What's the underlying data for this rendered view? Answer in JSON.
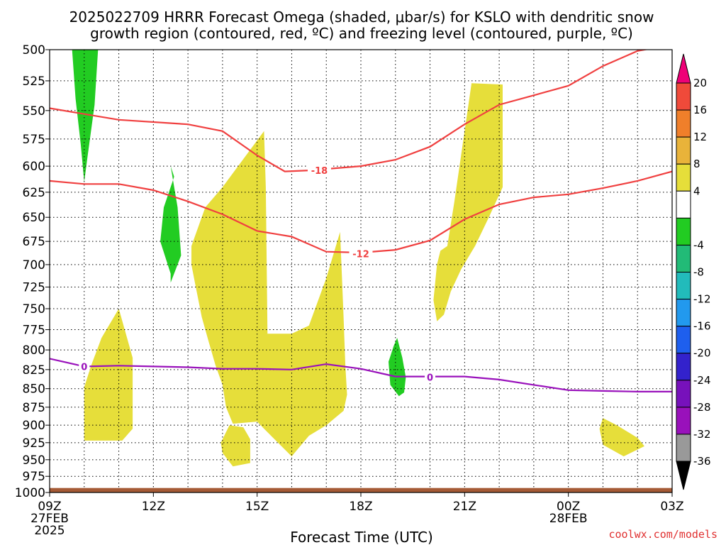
{
  "chart_data": {
    "type": "contour",
    "title_line1": "2025022709 HRRR Forecast Omega (shaded, μbar/s) for KSLO with dendritic snow",
    "title_line2": "growth region (contoured, red, ºC) and freezing level (contoured, purple, ºC)",
    "xlabel": "Forecast Time (UTC)",
    "credit": "coolwx.com/models",
    "x_ticks": [
      {
        "h": 0,
        "label": "09Z",
        "sub1": "27FEB",
        "sub2": "2025"
      },
      {
        "h": 3,
        "label": "12Z",
        "sub1": "",
        "sub2": ""
      },
      {
        "h": 6,
        "label": "15Z",
        "sub1": "",
        "sub2": ""
      },
      {
        "h": 9,
        "label": "18Z",
        "sub1": "",
        "sub2": ""
      },
      {
        "h": 12,
        "label": "21Z",
        "sub1": "",
        "sub2": ""
      },
      {
        "h": 15,
        "label": "00Z",
        "sub1": "28FEB",
        "sub2": ""
      },
      {
        "h": 18,
        "label": "03Z",
        "sub1": "",
        "sub2": ""
      }
    ],
    "y_ticks": [
      "500",
      "525",
      "550",
      "575",
      "600",
      "625",
      "650",
      "675",
      "700",
      "725",
      "750",
      "775",
      "800",
      "825",
      "850",
      "875",
      "900",
      "925",
      "950",
      "975",
      "1000"
    ],
    "xlim_hours": [
      0,
      18
    ],
    "ylim_hpa": [
      500,
      1000
    ],
    "y_scale": "log-pressure",
    "grid": true,
    "colorbar": {
      "labels": [
        "20",
        "16",
        "12",
        "8",
        "4",
        "-4",
        "-8",
        "-12",
        "-16",
        "-20",
        "-24",
        "-28",
        "-32",
        "-36"
      ],
      "colors": [
        "#ee0077",
        "#f04a3a",
        "#f07f2a",
        "#e9b33a",
        "#e6de3a",
        "#ffffff",
        "#22cc22",
        "#22bb77",
        "#22bbbb",
        "#2299ee",
        "#1e5fee",
        "#3322cc",
        "#7711bb",
        "#9911bb",
        "#999999",
        "#000000"
      ]
    },
    "series": [
      {
        "name": "-18",
        "color": "#f04040",
        "label_at": {
          "h": 7.8,
          "p": 604
        },
        "points": [
          [
            0,
            548
          ],
          [
            1,
            553
          ],
          [
            2,
            558
          ],
          [
            4,
            562
          ],
          [
            5,
            568
          ],
          [
            6,
            590
          ],
          [
            6.8,
            605
          ],
          [
            7.5,
            604
          ],
          [
            9,
            600
          ],
          [
            10,
            594
          ],
          [
            11,
            582
          ],
          [
            12,
            562
          ],
          [
            13,
            545
          ],
          [
            14,
            537
          ],
          [
            15,
            529
          ],
          [
            16,
            513
          ],
          [
            17,
            501
          ],
          [
            18,
            496
          ]
        ]
      },
      {
        "name": "-12",
        "color": "#f04040",
        "label_at": {
          "h": 9,
          "p": 688
        },
        "points": [
          [
            0,
            614
          ],
          [
            1,
            617
          ],
          [
            2,
            617
          ],
          [
            3,
            623
          ],
          [
            4,
            634
          ],
          [
            5,
            647
          ],
          [
            6,
            664
          ],
          [
            7,
            670
          ],
          [
            8,
            686
          ],
          [
            9,
            687
          ],
          [
            10,
            684
          ],
          [
            11,
            674
          ],
          [
            12,
            652
          ],
          [
            13,
            637
          ],
          [
            14,
            630
          ],
          [
            15,
            627
          ],
          [
            16,
            621
          ],
          [
            17,
            614
          ],
          [
            18,
            605
          ]
        ]
      },
      {
        "name": "0",
        "color": "#9911bb",
        "label_at": [
          {
            "h": 1,
            "p": 821
          },
          {
            "h": 11,
            "p": 835
          }
        ],
        "points": [
          [
            0,
            811
          ],
          [
            1,
            821
          ],
          [
            2,
            820
          ],
          [
            3,
            821
          ],
          [
            4,
            822
          ],
          [
            5,
            824
          ],
          [
            6,
            824
          ],
          [
            7,
            825
          ],
          [
            8,
            818
          ],
          [
            9,
            824
          ],
          [
            10,
            834
          ],
          [
            11,
            834
          ],
          [
            12,
            834
          ],
          [
            13,
            838
          ],
          [
            14,
            845
          ],
          [
            15,
            852
          ],
          [
            16,
            853
          ],
          [
            17,
            854
          ],
          [
            18,
            854
          ]
        ]
      }
    ],
    "shaded_regions": [
      {
        "class": "-8",
        "color": "#22cc22",
        "points": [
          [
            0.65,
            500
          ],
          [
            1.4,
            500
          ],
          [
            1.3,
            545
          ],
          [
            1.1,
            590
          ],
          [
            1.0,
            615
          ],
          [
            0.9,
            580
          ],
          [
            0.75,
            540
          ]
        ]
      },
      {
        "class": "-8",
        "color": "#22cc22",
        "points": [
          [
            3.5,
            600
          ],
          [
            3.6,
            610
          ],
          [
            3.3,
            640
          ],
          [
            3.2,
            675
          ],
          [
            3.5,
            710
          ],
          [
            3.5,
            720
          ],
          [
            3.8,
            690
          ],
          [
            3.7,
            640
          ]
        ]
      },
      {
        "class": "-8",
        "color": "#22cc22",
        "points": [
          [
            10.05,
            785
          ],
          [
            10.2,
            810
          ],
          [
            10.3,
            835
          ],
          [
            10.25,
            855
          ],
          [
            10.1,
            860
          ],
          [
            9.85,
            845
          ],
          [
            9.8,
            815
          ],
          [
            9.95,
            795
          ]
        ]
      },
      {
        "class": "4",
        "color": "#e6de3a",
        "points": [
          [
            1.0,
            848
          ],
          [
            1.2,
            820
          ],
          [
            1.5,
            785
          ],
          [
            2.0,
            750
          ],
          [
            2.4,
            810
          ],
          [
            2.4,
            905
          ],
          [
            2.1,
            922
          ],
          [
            1.0,
            922
          ]
        ]
      },
      {
        "class": "4",
        "color": "#e6de3a",
        "points": [
          [
            4.1,
            680
          ],
          [
            4.5,
            640
          ],
          [
            5.0,
            620
          ],
          [
            6.2,
            568
          ],
          [
            6.25,
            620
          ],
          [
            6.3,
            780
          ],
          [
            7.0,
            780
          ],
          [
            7.5,
            770
          ],
          [
            8.0,
            715
          ],
          [
            8.4,
            665
          ],
          [
            8.5,
            760
          ],
          [
            8.55,
            820
          ],
          [
            8.6,
            858
          ],
          [
            8.5,
            880
          ],
          [
            8.0,
            900
          ],
          [
            7.5,
            915
          ],
          [
            7.0,
            945
          ],
          [
            6.5,
            920
          ],
          [
            6.2,
            905
          ],
          [
            6.0,
            895
          ],
          [
            5.3,
            898
          ],
          [
            5.1,
            875
          ],
          [
            5.0,
            845
          ],
          [
            4.8,
            820
          ],
          [
            4.6,
            790
          ],
          [
            4.4,
            760
          ],
          [
            4.2,
            720
          ],
          [
            4.1,
            700
          ]
        ]
      },
      {
        "class": "4",
        "color": "#e6de3a",
        "points": [
          [
            5.2,
            900
          ],
          [
            5.6,
            903
          ],
          [
            5.8,
            920
          ],
          [
            5.8,
            955
          ],
          [
            5.3,
            960
          ],
          [
            5.0,
            940
          ],
          [
            4.95,
            925
          ]
        ]
      },
      {
        "class": "4",
        "color": "#e6de3a",
        "points": [
          [
            12.2,
            527
          ],
          [
            13.1,
            528
          ],
          [
            13.1,
            620
          ],
          [
            12.7,
            650
          ],
          [
            12.3,
            680
          ],
          [
            11.9,
            705
          ],
          [
            11.6,
            730
          ],
          [
            11.4,
            757
          ],
          [
            11.2,
            765
          ],
          [
            11.1,
            740
          ],
          [
            11.2,
            700
          ],
          [
            11.3,
            685
          ],
          [
            11.5,
            680
          ],
          [
            11.7,
            635
          ]
        ]
      },
      {
        "class": "4",
        "color": "#e6de3a",
        "points": [
          [
            16.0,
            890
          ],
          [
            16.4,
            900
          ],
          [
            17.0,
            918
          ],
          [
            17.2,
            930
          ],
          [
            16.6,
            945
          ],
          [
            16.0,
            928
          ],
          [
            15.9,
            905
          ]
        ]
      }
    ],
    "ground": {
      "color": "#a55a35",
      "from_hpa": 993,
      "to_hpa": 1000
    }
  }
}
